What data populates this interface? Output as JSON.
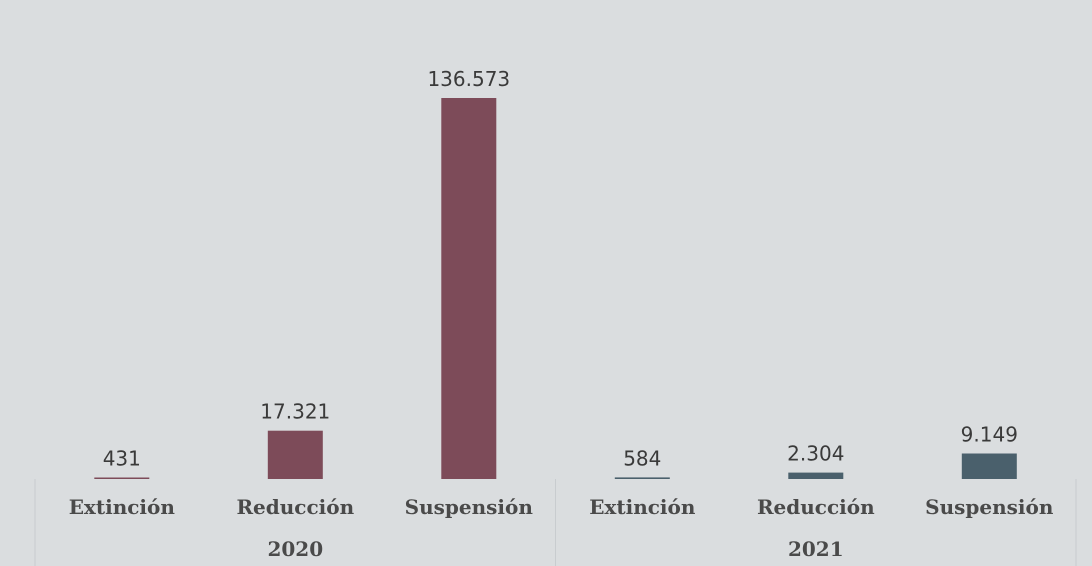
{
  "chart_data": {
    "type": "bar",
    "groups": [
      {
        "name": "2020",
        "color": "#7d4b59",
        "categories": [
          "Extinción",
          "Reducción",
          "Suspensión"
        ],
        "values": [
          431,
          17321,
          136573
        ],
        "labels": [
          "431",
          "17.321",
          "136.573"
        ]
      },
      {
        "name": "2021",
        "color": "#4a606c",
        "categories": [
          "Extinción",
          "Reducción",
          "Suspensión"
        ],
        "values": [
          584,
          2304,
          9149
        ],
        "labels": [
          "584",
          "2.304",
          "9.149"
        ]
      }
    ],
    "ylim": [
      0,
      136573
    ],
    "grid": false,
    "legend": "none"
  }
}
